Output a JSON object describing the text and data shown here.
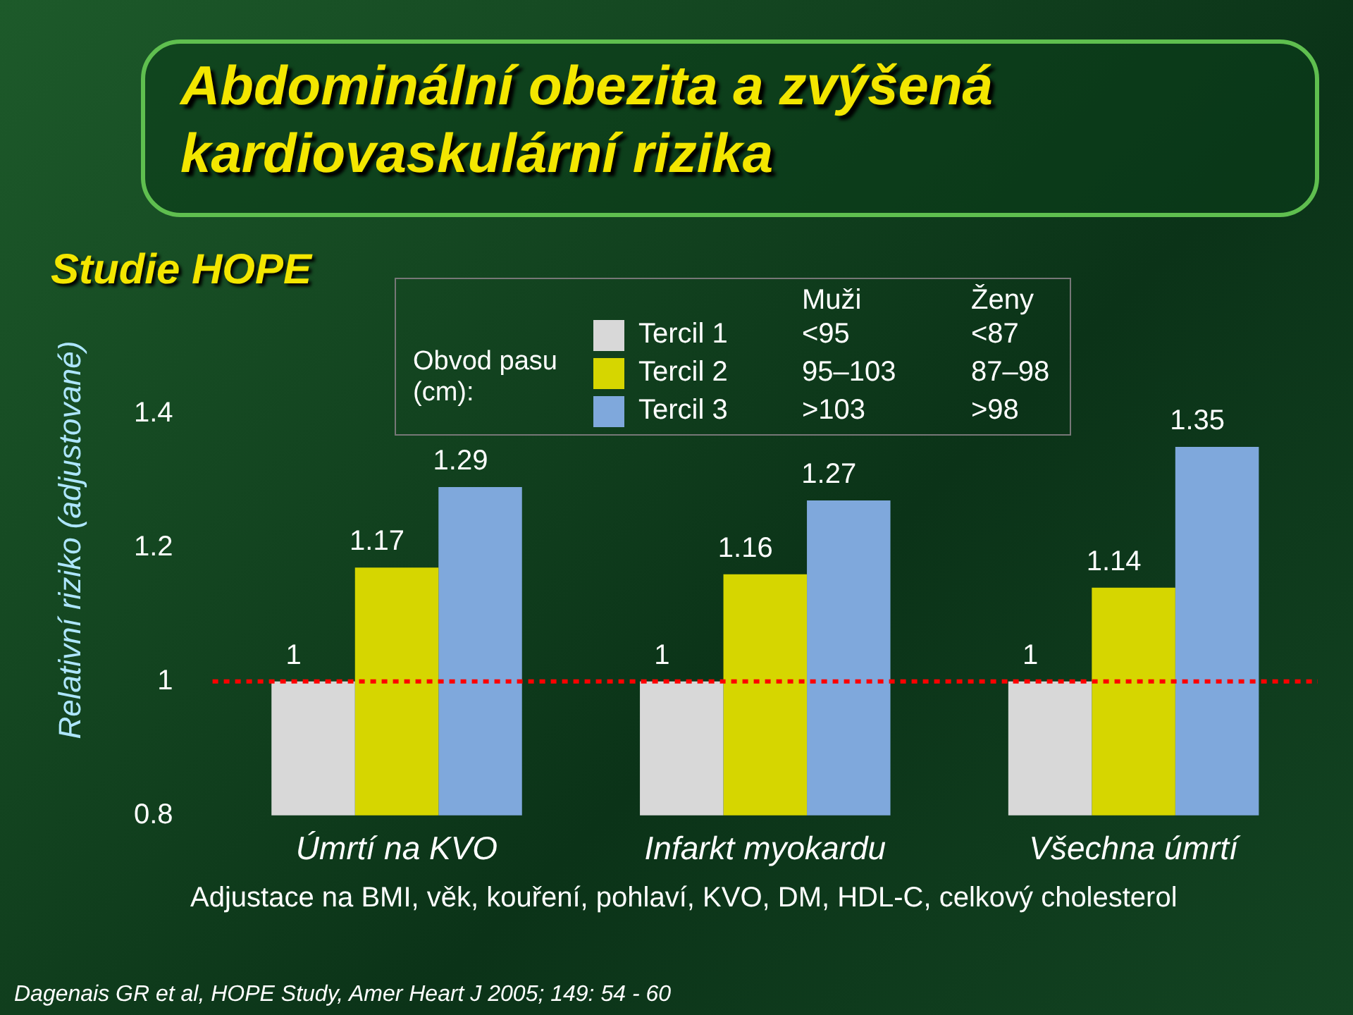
{
  "chart_data": {
    "type": "bar",
    "title": "Abdominální obezita a zvýšená kardiovaskulární rizika",
    "subtitle": "Studie HOPE",
    "ylabel": "Relativní riziko (adjustované)",
    "legend_title": "Obvod pasu (cm):",
    "categories": [
      "Úmrtí na KVO",
      "Infarkt myokardu",
      "Všechna úmrtí"
    ],
    "series": [
      {
        "name": "Tercil 1",
        "color": "#d8d8d8",
        "values": [
          1,
          1,
          1
        ]
      },
      {
        "name": "Tercil 2",
        "color": "#d6d600",
        "values": [
          1.17,
          1.16,
          1.14
        ]
      },
      {
        "name": "Tercil 3",
        "color": "#7fa8dc",
        "values": [
          1.29,
          1.27,
          1.35
        ]
      }
    ],
    "ylim": [
      0.8,
      1.55
    ],
    "yticks": [
      {
        "value": 0.8,
        "label": "0.8"
      },
      1,
      {
        "value": 1.2,
        "label": "1.2"
      },
      {
        "value": 1.4,
        "label": "1.4"
      }
    ],
    "grid": false,
    "data_labels": true,
    "legend": "top",
    "ref_lines": [
      {
        "axis": "y",
        "value": 1,
        "color": "#ff0000",
        "line_style": "dotted"
      }
    ],
    "annotations": [
      "Muži",
      "Ženy",
      "<95",
      "<87",
      "95–103",
      "87–98",
      ">103",
      ">98",
      "Adjustace na BMI, věk, kouření, pohlaví, KVO,  DM, HDL-C, celkový cholesterol",
      "Dagenais GR et al, HOPE Study, Amer Heart J 2005; 149: 54 - 60"
    ]
  }
}
